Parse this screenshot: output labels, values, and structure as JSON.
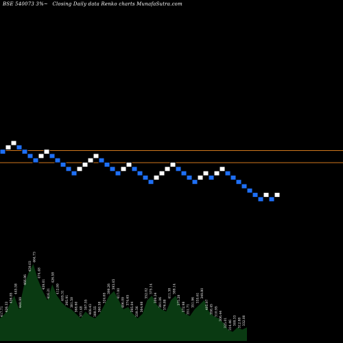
{
  "header": {
    "code": "BSE 540073 3%~",
    "description": "Closing Daily data  Renko  charts MunafaSutra.com"
  },
  "colors": {
    "background": "#000000",
    "up_brick": "#ffffff",
    "down_brick": "#1e6ff5",
    "brick_border": "#000000",
    "level_line": "#d2781e",
    "volume_fill": "#0a3a12",
    "volume_text": "#ffffff"
  },
  "chart_data": [
    {
      "type": "renko",
      "bricks": [
        {
          "d": "down",
          "r": 2
        },
        {
          "d": "up",
          "r": 1
        },
        {
          "d": "up",
          "r": 0
        },
        {
          "d": "down",
          "r": 1
        },
        {
          "d": "down",
          "r": 2
        },
        {
          "d": "down",
          "r": 3
        },
        {
          "d": "down",
          "r": 4
        },
        {
          "d": "up",
          "r": 3
        },
        {
          "d": "up",
          "r": 2
        },
        {
          "d": "down",
          "r": 3
        },
        {
          "d": "down",
          "r": 4
        },
        {
          "d": "down",
          "r": 5
        },
        {
          "d": "down",
          "r": 6
        },
        {
          "d": "down",
          "r": 7
        },
        {
          "d": "up",
          "r": 6
        },
        {
          "d": "up",
          "r": 5
        },
        {
          "d": "up",
          "r": 4
        },
        {
          "d": "up",
          "r": 3
        },
        {
          "d": "down",
          "r": 4
        },
        {
          "d": "down",
          "r": 5
        },
        {
          "d": "down",
          "r": 6
        },
        {
          "d": "down",
          "r": 7
        },
        {
          "d": "up",
          "r": 6
        },
        {
          "d": "up",
          "r": 5
        },
        {
          "d": "down",
          "r": 6
        },
        {
          "d": "down",
          "r": 7
        },
        {
          "d": "down",
          "r": 8
        },
        {
          "d": "down",
          "r": 9
        },
        {
          "d": "up",
          "r": 8
        },
        {
          "d": "up",
          "r": 7
        },
        {
          "d": "up",
          "r": 6
        },
        {
          "d": "up",
          "r": 5
        },
        {
          "d": "down",
          "r": 6
        },
        {
          "d": "down",
          "r": 7
        },
        {
          "d": "down",
          "r": 8
        },
        {
          "d": "down",
          "r": 9
        },
        {
          "d": "up",
          "r": 8
        },
        {
          "d": "up",
          "r": 7
        },
        {
          "d": "down",
          "r": 8
        },
        {
          "d": "up",
          "r": 7
        },
        {
          "d": "up",
          "r": 6
        },
        {
          "d": "down",
          "r": 7
        },
        {
          "d": "down",
          "r": 8
        },
        {
          "d": "down",
          "r": 9
        },
        {
          "d": "down",
          "r": 10
        },
        {
          "d": "down",
          "r": 11
        },
        {
          "d": "down",
          "r": 12
        },
        {
          "d": "down",
          "r": 13
        },
        {
          "d": "up",
          "r": 12
        },
        {
          "d": "down",
          "r": 13
        },
        {
          "d": "up",
          "r": 12
        }
      ],
      "level_lines": [
        2.3,
        5.1
      ]
    },
    {
      "type": "area",
      "name": "volume",
      "values": [
        10,
        12,
        16,
        20,
        14,
        24,
        30,
        34,
        27,
        22,
        18,
        25,
        20,
        17,
        15,
        14,
        12,
        10,
        13,
        11,
        10,
        12,
        16,
        20,
        22,
        18,
        14,
        15,
        12,
        10,
        12,
        18,
        20,
        16,
        14,
        13,
        18,
        20,
        15,
        12,
        11,
        14,
        16,
        18,
        13,
        11,
        10,
        8,
        5,
        4,
        6,
        5,
        6
      ],
      "labels": [
        "417.71",
        "426.33",
        "436.85",
        "445.58",
        "449.99",
        "466.86",
        "459.03",
        "464.73",
        "474.48",
        "439.01",
        "416.21",
        "426.58",
        "412.80",
        "405.31",
        "395.91",
        "381.58",
        "368.60",
        "371.48",
        "397.55",
        "408.43",
        "388.55",
        "360.58",
        "324.65",
        "398.26",
        "393.05",
        "417.00",
        "406.09",
        "374.65",
        "395.04",
        "339.56",
        "364.98",
        "352.02",
        "375.14",
        "309.34",
        "391.06",
        "376.88",
        "411.38",
        "388.14",
        "375.28",
        "372.98",
        "351.71",
        "351.96",
        "335.61",
        "349.80",
        "405.97",
        "358.45",
        "310.95",
        "306.44",
        "325.01",
        "314.46",
        "308.33",
        "312.88",
        "332.00"
      ]
    }
  ]
}
